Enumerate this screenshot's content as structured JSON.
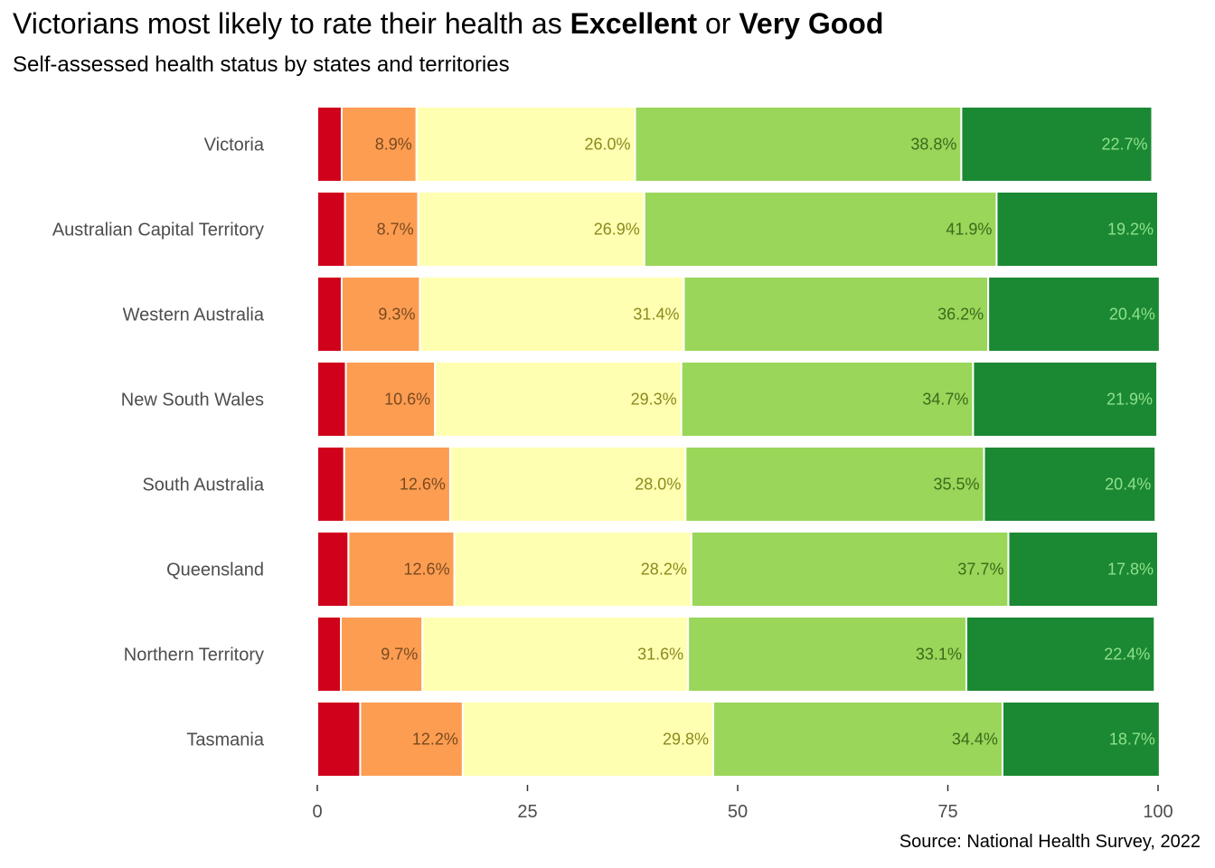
{
  "title": {
    "prefix": "Victorians most likely to rate their health as ",
    "bold1": "Excellent",
    "mid": " or ",
    "bold2": "Very Good"
  },
  "subtitle": "Self-assessed health status by states and territories",
  "caption": "Source: National Health Survey, 2022",
  "colors": {
    "poor": "#d0021b",
    "fair": "#fc9d52",
    "good": "#ffffb2",
    "very_good": "#9ad65a",
    "excellent": "#1b8933",
    "label_fair": "#7a4a1e",
    "label_good": "#8a8a1c",
    "label_very_good": "#3c6a1a",
    "label_excellent": "#8fe08a"
  },
  "chart_data": {
    "type": "bar",
    "orientation": "horizontal",
    "stacked": true,
    "categories": [
      "Victoria",
      "Australian Capital Territory",
      "Western Australia",
      "New South Wales",
      "South Australia",
      "Queensland",
      "Northern Territory",
      "Tasmania"
    ],
    "series": [
      {
        "values": [
          2.9,
          3.3,
          2.9,
          3.4,
          3.2,
          3.7,
          2.8,
          5.1
        ]
      },
      {
        "values": [
          8.9,
          8.7,
          9.3,
          10.6,
          12.6,
          12.6,
          9.7,
          12.2
        ]
      },
      {
        "values": [
          26.0,
          26.9,
          31.4,
          29.3,
          28.0,
          28.2,
          31.6,
          29.8
        ]
      },
      {
        "values": [
          38.8,
          41.9,
          36.2,
          34.7,
          35.5,
          37.7,
          33.1,
          34.4
        ]
      },
      {
        "values": [
          22.7,
          19.2,
          20.4,
          21.9,
          20.4,
          17.8,
          22.4,
          18.7
        ]
      }
    ],
    "data_labels": [
      [
        "",
        "8.9%",
        "26.0%",
        "38.8%",
        "22.7%"
      ],
      [
        "",
        "8.7%",
        "26.9%",
        "41.9%",
        "19.2%"
      ],
      [
        "",
        "9.3%",
        "31.4%",
        "36.2%",
        "20.4%"
      ],
      [
        "",
        "10.6%",
        "29.3%",
        "34.7%",
        "21.9%"
      ],
      [
        "",
        "12.6%",
        "28.0%",
        "35.5%",
        "20.4%"
      ],
      [
        "",
        "12.6%",
        "28.2%",
        "37.7%",
        "17.8%"
      ],
      [
        "",
        "9.7%",
        "31.6%",
        "33.1%",
        "22.4%"
      ],
      [
        "",
        "12.2%",
        "29.8%",
        "34.4%",
        "18.7%"
      ]
    ],
    "xlim": [
      0,
      100
    ],
    "xticks": [
      0,
      25,
      50,
      75,
      100
    ],
    "xtick_labels": [
      "0",
      "25",
      "50",
      "75",
      "100"
    ],
    "xlabel": "",
    "ylabel": "",
    "grid": false,
    "legend": "none"
  }
}
